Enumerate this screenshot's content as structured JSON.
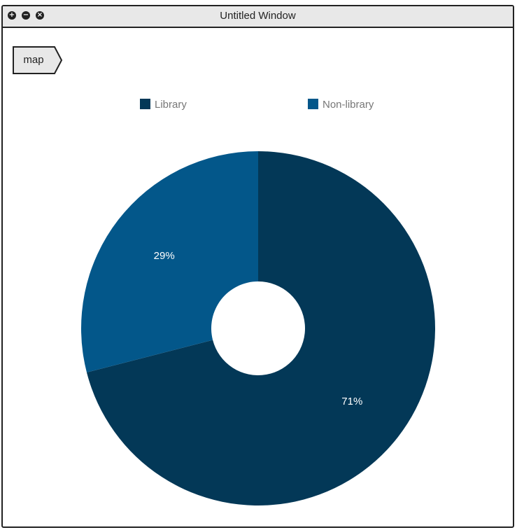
{
  "window": {
    "title": "Untitled Window",
    "controls": [
      "+",
      "−",
      "×"
    ]
  },
  "tag": {
    "label": "map"
  },
  "chart_data": {
    "type": "pie",
    "labels": [
      "Library",
      "Non-library"
    ],
    "values": [
      71,
      29
    ],
    "value_labels": [
      "71%",
      "29%"
    ],
    "colors": [
      "#033857",
      "#03578a"
    ],
    "donut": true,
    "legend": "top"
  }
}
